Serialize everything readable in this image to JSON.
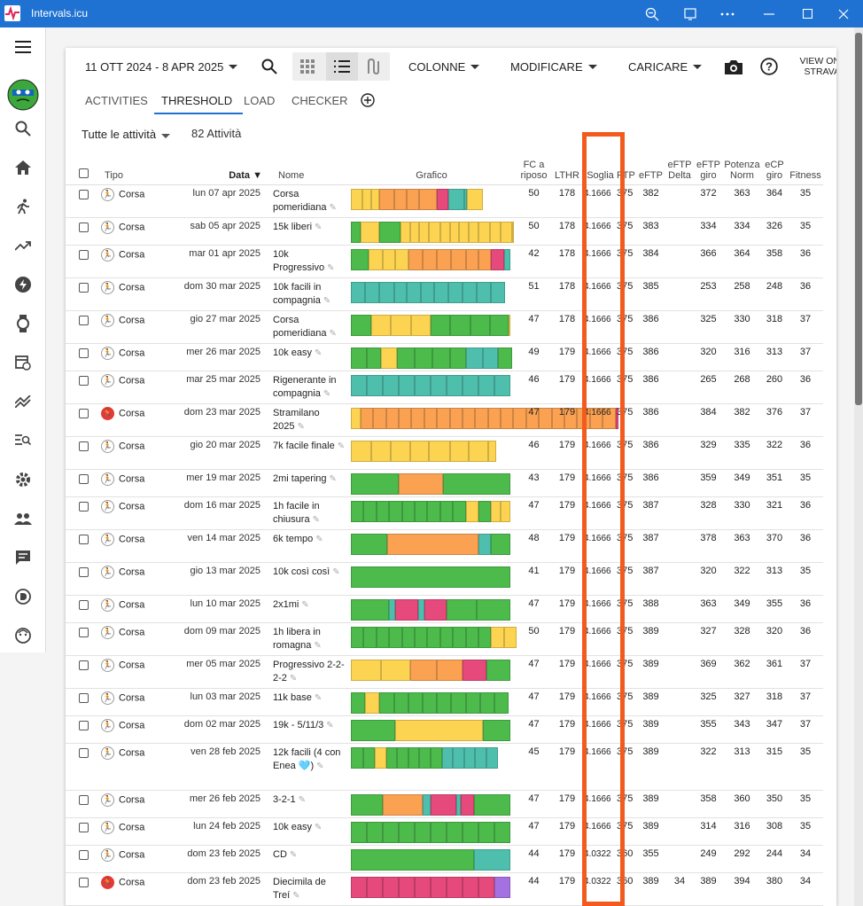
{
  "window": {
    "title": "Intervals.icu"
  },
  "toolbar": {
    "date_range": "11 OTT 2024 - 8 APR 2025",
    "columns": "COLONNE",
    "modify": "MODIFICARE",
    "upload": "CARICARE",
    "strava_line1": "VIEW ON",
    "strava_line2": "STRAVA"
  },
  "tabs": [
    "ACTIVITIES",
    "THRESHOLD",
    "LOAD",
    "CHECKER"
  ],
  "filter": {
    "label": "Tutte le attività",
    "count": "82 Attività"
  },
  "columns": {
    "tipo": "Tipo",
    "data": "Data ▼",
    "nome": "Nome",
    "grafico": "Grafico",
    "fc1": "FC a",
    "fc2": "riposo",
    "lthr": "LTHR",
    "soglia": "Soglia",
    "ftp": "FTP",
    "eftp": "eFTP",
    "delta1": "eFTP",
    "delta2": "Delta",
    "giro1": "eFTP",
    "giro2": "giro",
    "norm1": "Potenza",
    "norm2": "Norm",
    "ecp1": "eCP",
    "ecp2": "giro",
    "fitness": "Fitness"
  },
  "colors": {
    "green": "#4cbb4c",
    "yellow": "#fcd451",
    "orange": "#fba152",
    "pink": "#e6497b",
    "teal": "#4fbfad",
    "purple": "#a571e0",
    "highlight": "#f25a1e"
  },
  "rows": [
    {
      "tipo": "Corsa",
      "race": false,
      "date": "lun 07 apr 2025",
      "name": "Corsa pomeridiana",
      "fc": "50",
      "lthr": "178",
      "soglia": "4.1666",
      "ftp": "375",
      "eftp": "382",
      "delta": "",
      "giro": "372",
      "norm": "363",
      "ecp": "364",
      "fitness": "35",
      "zones": [
        "yellow:7",
        "yellow:6",
        "yellow:5",
        "orange:9",
        "orange:8",
        "orange:8",
        "orange:11",
        "pink:7",
        "teal:10",
        "teal:2",
        "yellow:10"
      ]
    },
    {
      "tipo": "Corsa",
      "race": false,
      "date": "sab 05 apr 2025",
      "name": "15k liberi",
      "fc": "50",
      "lthr": "178",
      "soglia": "4.1666",
      "ftp": "375",
      "eftp": "383",
      "delta": "",
      "giro": "334",
      "norm": "334",
      "ecp": "326",
      "fitness": "35",
      "zones": [
        "green:6",
        "yellow:12",
        "green:13",
        "yellow:6",
        "yellow:6",
        "yellow:6",
        "yellow:7",
        "yellow:6",
        "yellow:6",
        "yellow:6",
        "yellow:6",
        "yellow:7",
        "yellow:7",
        "yellow:7",
        "yellow:1"
      ]
    },
    {
      "tipo": "Corsa",
      "race": false,
      "date": "mar 01 apr 2025",
      "name": "10k Progressivo",
      "fc": "42",
      "lthr": "178",
      "soglia": "4.1666",
      "ftp": "375",
      "eftp": "384",
      "delta": "",
      "giro": "366",
      "norm": "364",
      "ecp": "358",
      "fitness": "36",
      "zones": [
        "green:11",
        "yellow:9",
        "yellow:8",
        "yellow:8",
        "orange:9",
        "orange:9",
        "orange:9",
        "orange:9",
        "orange:8",
        "orange:8",
        "pink:8",
        "teal:4"
      ]
    },
    {
      "tipo": "Corsa",
      "race": false,
      "date": "dom 30 mar 2025",
      "name": "10k facili in compagnia",
      "fc": "51",
      "lthr": "178",
      "soglia": "4.1666",
      "ftp": "375",
      "eftp": "385",
      "delta": "",
      "giro": "253",
      "norm": "258",
      "ecp": "248",
      "fitness": "36",
      "zones": [
        "teal:9",
        "teal:9",
        "teal:9",
        "teal:8",
        "teal:9",
        "teal:8",
        "teal:9",
        "teal:9",
        "teal:9",
        "teal:9",
        "teal:9"
      ]
    },
    {
      "tipo": "Corsa",
      "race": false,
      "date": "gio 27 mar 2025",
      "name": "Corsa pomeridiana",
      "fc": "47",
      "lthr": "178",
      "soglia": "4.1666",
      "ftp": "375",
      "eftp": "386",
      "delta": "",
      "giro": "325",
      "norm": "330",
      "ecp": "318",
      "fitness": "37",
      "zones": [
        "green:13",
        "yellow:12",
        "yellow:13",
        "yellow:12",
        "green:12",
        "green:13",
        "green:12",
        "green:12",
        "yellow:1"
      ]
    },
    {
      "tipo": "Corsa",
      "race": false,
      "date": "mer 26 mar 2025",
      "name": "10k easy",
      "fc": "49",
      "lthr": "179",
      "soglia": "4.1666",
      "ftp": "375",
      "eftp": "386",
      "delta": "",
      "giro": "320",
      "norm": "316",
      "ecp": "313",
      "fitness": "37",
      "zones": [
        "green:10",
        "green:9",
        "yellow:10",
        "green:11",
        "green:11",
        "green:11",
        "green:10",
        "teal:11",
        "teal:9",
        "green:9"
      ]
    },
    {
      "tipo": "Corsa",
      "race": false,
      "date": "mar 25 mar 2025",
      "name": "Rigenerante in compagnia",
      "fc": "46",
      "lthr": "179",
      "soglia": "4.1666",
      "ftp": "375",
      "eftp": "386",
      "delta": "",
      "giro": "265",
      "norm": "268",
      "ecp": "260",
      "fitness": "36",
      "zones": [
        "teal:10",
        "teal:10",
        "teal:10",
        "teal:10",
        "teal:10",
        "teal:10",
        "teal:10",
        "teal:10",
        "teal:10",
        "teal:10"
      ]
    },
    {
      "tipo": "Corsa",
      "race": true,
      "date": "dom 23 mar 2025",
      "name": "Stramilano 2025",
      "fc": "47",
      "lthr": "179",
      "soglia": "4.1666",
      "ftp": "375",
      "eftp": "386",
      "delta": "",
      "giro": "384",
      "norm": "382",
      "ecp": "376",
      "fitness": "37",
      "zones": [
        "yellow:6",
        "orange:8",
        "orange:8",
        "orange:8",
        "orange:8",
        "orange:8",
        "orange:8",
        "orange:8",
        "orange:8",
        "orange:8",
        "orange:8",
        "orange:8",
        "orange:8",
        "orange:8",
        "orange:8",
        "orange:8",
        "orange:8",
        "orange:8",
        "orange:8",
        "orange:8",
        "orange:8",
        "pink:2"
      ]
    },
    {
      "tipo": "Corsa",
      "race": false,
      "date": "gio 20 mar 2025",
      "name": "7k facile finale",
      "fc": "46",
      "lthr": "179",
      "soglia": "4.1666",
      "ftp": "375",
      "eftp": "386",
      "delta": "",
      "giro": "329",
      "norm": "335",
      "ecp": "322",
      "fitness": "36",
      "zones": [
        "yellow:13",
        "yellow:12",
        "yellow:12",
        "yellow:12",
        "yellow:13",
        "yellow:12",
        "yellow:12",
        "yellow:5"
      ]
    },
    {
      "tipo": "Corsa",
      "race": false,
      "date": "mer 19 mar 2025",
      "name": "2mi tapering",
      "fc": "43",
      "lthr": "179",
      "soglia": "4.1666",
      "ftp": "375",
      "eftp": "386",
      "delta": "",
      "giro": "359",
      "norm": "349",
      "ecp": "351",
      "fitness": "35",
      "zones": [
        "green:30",
        "orange:28",
        "green:42"
      ]
    },
    {
      "tipo": "Corsa",
      "race": false,
      "date": "dom 16 mar 2025",
      "name": "1h facile in chiusura",
      "fc": "47",
      "lthr": "179",
      "soglia": "4.1666",
      "ftp": "375",
      "eftp": "387",
      "delta": "",
      "giro": "328",
      "norm": "330",
      "ecp": "321",
      "fitness": "36",
      "zones": [
        "green:8",
        "green:8",
        "green:8",
        "green:8",
        "green:8",
        "green:8",
        "green:8",
        "green:8",
        "green:8",
        "yellow:8",
        "green:8",
        "yellow:6",
        "yellow:6"
      ]
    },
    {
      "tipo": "Corsa",
      "race": false,
      "date": "ven 14 mar 2025",
      "name": "6k tempo",
      "fc": "48",
      "lthr": "179",
      "soglia": "4.1666",
      "ftp": "375",
      "eftp": "387",
      "delta": "",
      "giro": "378",
      "norm": "363",
      "ecp": "370",
      "fitness": "36",
      "zones": [
        "green:23",
        "orange:57",
        "teal:8",
        "green:12"
      ]
    },
    {
      "tipo": "Corsa",
      "race": false,
      "date": "gio 13 mar 2025",
      "name": "10k così così",
      "fc": "41",
      "lthr": "179",
      "soglia": "4.1666",
      "ftp": "375",
      "eftp": "387",
      "delta": "",
      "giro": "320",
      "norm": "322",
      "ecp": "313",
      "fitness": "35",
      "zones": [
        "green:100"
      ]
    },
    {
      "tipo": "Corsa",
      "race": false,
      "date": "lun 10 mar 2025",
      "name": "2x1mi",
      "fc": "47",
      "lthr": "179",
      "soglia": "4.1666",
      "ftp": "375",
      "eftp": "388",
      "delta": "",
      "giro": "363",
      "norm": "349",
      "ecp": "355",
      "fitness": "36",
      "zones": [
        "green:24",
        "teal:4",
        "pink:14",
        "teal:4",
        "pink:14",
        "green:19",
        "green:21"
      ]
    },
    {
      "tipo": "Corsa",
      "race": false,
      "date": "dom 09 mar 2025",
      "name": "1h libera in romagna",
      "fc": "50",
      "lthr": "179",
      "soglia": "4.1666",
      "ftp": "375",
      "eftp": "389",
      "delta": "",
      "giro": "327",
      "norm": "328",
      "ecp": "320",
      "fitness": "36",
      "zones": [
        "green:8",
        "green:8",
        "green:8",
        "green:8",
        "green:8",
        "green:8",
        "green:8",
        "green:8",
        "green:8",
        "green:8",
        "green:8",
        "yellow:8",
        "yellow:8"
      ]
    },
    {
      "tipo": "Corsa",
      "race": false,
      "date": "mer 05 mar 2025",
      "name": "Progressivo 2-2-2-2",
      "fc": "47",
      "lthr": "179",
      "soglia": "4.1666",
      "ftp": "375",
      "eftp": "389",
      "delta": "",
      "giro": "369",
      "norm": "362",
      "ecp": "361",
      "fitness": "37",
      "zones": [
        "yellow:19",
        "yellow:18",
        "orange:17",
        "orange:16",
        "pink:15",
        "green:15"
      ]
    },
    {
      "tipo": "Corsa",
      "race": false,
      "date": "lun 03 mar 2025",
      "name": "11k base",
      "fc": "47",
      "lthr": "179",
      "soglia": "4.1666",
      "ftp": "375",
      "eftp": "389",
      "delta": "",
      "giro": "325",
      "norm": "327",
      "ecp": "318",
      "fitness": "37",
      "zones": [
        "green:9",
        "yellow:9",
        "green:9",
        "green:9",
        "green:9",
        "green:9",
        "green:9",
        "green:9",
        "green:9",
        "green:9",
        "green:9"
      ]
    },
    {
      "tipo": "Corsa",
      "race": false,
      "date": "dom 02 mar 2025",
      "name": "19k - 5/11/3",
      "fc": "47",
      "lthr": "179",
      "soglia": "4.1666",
      "ftp": "375",
      "eftp": "389",
      "delta": "",
      "giro": "355",
      "norm": "343",
      "ecp": "347",
      "fitness": "37",
      "zones": [
        "green:28",
        "yellow:55",
        "green:17"
      ]
    },
    {
      "tipo": "Corsa",
      "race": false,
      "date": "ven 28 feb 2025",
      "name": "12k facili (4 con Enea 🩵)",
      "fc": "45",
      "lthr": "179",
      "soglia": "4.1666",
      "ftp": "375",
      "eftp": "389",
      "delta": "",
      "giro": "322",
      "norm": "313",
      "ecp": "315",
      "fitness": "35",
      "zones": [
        "green:8",
        "green:7",
        "yellow:7",
        "green:7",
        "green:7",
        "green:7",
        "green:7",
        "green:7",
        "teal:7",
        "teal:7",
        "teal:7",
        "teal:7",
        "teal:7"
      ]
    },
    {
      "tipo": "Corsa",
      "race": false,
      "date": "mer 26 feb 2025",
      "name": "3-2-1",
      "fc": "47",
      "lthr": "179",
      "soglia": "4.1666",
      "ftp": "375",
      "eftp": "389",
      "delta": "",
      "giro": "358",
      "norm": "360",
      "ecp": "350",
      "fitness": "35",
      "zones": [
        "green:20",
        "orange:25",
        "teal:5",
        "pink:16",
        "teal:3",
        "pink:8",
        "green:23"
      ]
    },
    {
      "tipo": "Corsa",
      "race": false,
      "date": "lun 24 feb 2025",
      "name": "10k easy",
      "fc": "47",
      "lthr": "179",
      "soglia": "4.1666",
      "ftp": "375",
      "eftp": "389",
      "delta": "",
      "giro": "314",
      "norm": "316",
      "ecp": "308",
      "fitness": "35",
      "zones": [
        "green:10",
        "green:10",
        "green:10",
        "green:10",
        "green:10",
        "green:10",
        "green:10",
        "green:10",
        "green:10",
        "green:10"
      ]
    },
    {
      "tipo": "Corsa",
      "race": false,
      "date": "dom 23 feb 2025",
      "name": "CD",
      "fc": "44",
      "lthr": "179",
      "soglia": "4.0322",
      "ftp": "360",
      "eftp": "355",
      "delta": "",
      "giro": "249",
      "norm": "292",
      "ecp": "244",
      "fitness": "34",
      "zones": [
        "green:77",
        "teal:23"
      ]
    },
    {
      "tipo": "Corsa",
      "race": true,
      "date": "dom 23 feb 2025",
      "name": "Diecimila de Treí",
      "fc": "44",
      "lthr": "179",
      "soglia": "4.0322",
      "ftp": "360",
      "eftp": "389",
      "delta": "34",
      "giro": "389",
      "norm": "394",
      "ecp": "380",
      "fitness": "34",
      "zones": [
        "pink:10",
        "pink:10",
        "pink:10",
        "pink:10",
        "pink:10",
        "pink:10",
        "pink:10",
        "pink:10",
        "pink:10",
        "purple:10"
      ]
    }
  ]
}
